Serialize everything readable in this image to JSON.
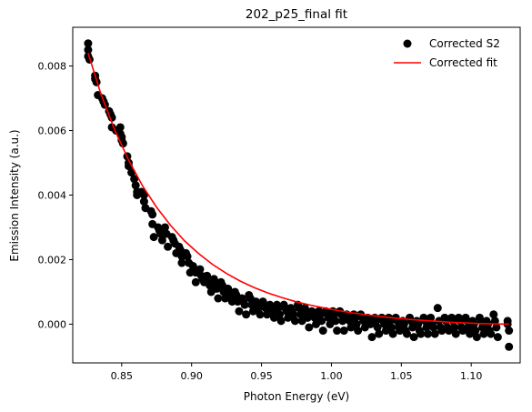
{
  "chart_data": {
    "type": "scatter",
    "title": "202_p25_final fit",
    "xlabel": "Photon Energy (eV)",
    "ylabel": "Emission Intensity (a.u.)",
    "xlim": [
      0.815,
      1.135
    ],
    "ylim": [
      -0.0012,
      0.0092
    ],
    "xticks": [
      0.85,
      0.9,
      0.95,
      1.0,
      1.05,
      1.1
    ],
    "xtick_labels": [
      "0.85",
      "0.90",
      "0.95",
      "1.00",
      "1.05",
      "1.10"
    ],
    "yticks": [
      0.0,
      0.002,
      0.004,
      0.006,
      0.008
    ],
    "ytick_labels": [
      "0.000",
      "0.002",
      "0.004",
      "0.006",
      "0.008"
    ],
    "grid": false,
    "legend_position": "top-right",
    "series": [
      {
        "name": "Corrected S2",
        "kind": "scatter",
        "color": "#000000",
        "points": [
          [
            0.826,
            0.0087
          ],
          [
            0.826,
            0.0085
          ],
          [
            0.826,
            0.0083
          ],
          [
            0.827,
            0.0082
          ],
          [
            0.831,
            0.0077
          ],
          [
            0.831,
            0.0076
          ],
          [
            0.832,
            0.0075
          ],
          [
            0.833,
            0.0071
          ],
          [
            0.836,
            0.007
          ],
          [
            0.837,
            0.0069
          ],
          [
            0.838,
            0.0068
          ],
          [
            0.841,
            0.0066
          ],
          [
            0.842,
            0.0065
          ],
          [
            0.843,
            0.0064
          ],
          [
            0.843,
            0.0061
          ],
          [
            0.846,
            0.006
          ],
          [
            0.849,
            0.0061
          ],
          [
            0.849,
            0.0059
          ],
          [
            0.85,
            0.0058
          ],
          [
            0.85,
            0.0057
          ],
          [
            0.851,
            0.0056
          ],
          [
            0.854,
            0.0052
          ],
          [
            0.855,
            0.005
          ],
          [
            0.855,
            0.0049
          ],
          [
            0.857,
            0.0047
          ],
          [
            0.859,
            0.0045
          ],
          [
            0.86,
            0.0043
          ],
          [
            0.861,
            0.0041
          ],
          [
            0.861,
            0.004
          ],
          [
            0.864,
            0.0041
          ],
          [
            0.866,
            0.004
          ],
          [
            0.866,
            0.0038
          ],
          [
            0.867,
            0.0036
          ],
          [
            0.871,
            0.0035
          ],
          [
            0.872,
            0.0034
          ],
          [
            0.872,
            0.0031
          ],
          [
            0.873,
            0.0027
          ],
          [
            0.876,
            0.003
          ],
          [
            0.877,
            0.0029
          ],
          [
            0.878,
            0.0028
          ],
          [
            0.879,
            0.0026
          ],
          [
            0.881,
            0.003
          ],
          [
            0.882,
            0.0028
          ],
          [
            0.883,
            0.0024
          ],
          [
            0.886,
            0.0027
          ],
          [
            0.887,
            0.0026
          ],
          [
            0.888,
            0.0025
          ],
          [
            0.889,
            0.0022
          ],
          [
            0.891,
            0.0024
          ],
          [
            0.892,
            0.0023
          ],
          [
            0.893,
            0.0021
          ],
          [
            0.893,
            0.0019
          ],
          [
            0.896,
            0.0022
          ],
          [
            0.897,
            0.0021
          ],
          [
            0.898,
            0.0019
          ],
          [
            0.899,
            0.0016
          ],
          [
            0.901,
            0.0018
          ],
          [
            0.902,
            0.0017
          ],
          [
            0.903,
            0.0016
          ],
          [
            0.903,
            0.0013
          ],
          [
            0.906,
            0.0017
          ],
          [
            0.907,
            0.0015
          ],
          [
            0.908,
            0.0014
          ],
          [
            0.909,
            0.0013
          ],
          [
            0.911,
            0.0015
          ],
          [
            0.912,
            0.0014
          ],
          [
            0.913,
            0.0012
          ],
          [
            0.914,
            0.001
          ],
          [
            0.916,
            0.0014
          ],
          [
            0.917,
            0.0013
          ],
          [
            0.918,
            0.0011
          ],
          [
            0.919,
            0.0008
          ],
          [
            0.921,
            0.0013
          ],
          [
            0.922,
            0.0012
          ],
          [
            0.923,
            0.001
          ],
          [
            0.924,
            0.0008
          ],
          [
            0.926,
            0.0011
          ],
          [
            0.927,
            0.001
          ],
          [
            0.928,
            0.0009
          ],
          [
            0.929,
            0.0007
          ],
          [
            0.931,
            0.001
          ],
          [
            0.932,
            0.0009
          ],
          [
            0.933,
            0.0007
          ],
          [
            0.934,
            0.0004
          ],
          [
            0.936,
            0.0008
          ],
          [
            0.937,
            0.0007
          ],
          [
            0.938,
            0.0006
          ],
          [
            0.939,
            0.0003
          ],
          [
            0.941,
            0.0009
          ],
          [
            0.942,
            0.0008
          ],
          [
            0.943,
            0.0006
          ],
          [
            0.944,
            0.0004
          ],
          [
            0.946,
            0.0007
          ],
          [
            0.947,
            0.0006
          ],
          [
            0.948,
            0.0005
          ],
          [
            0.949,
            0.0003
          ],
          [
            0.951,
            0.0007
          ],
          [
            0.952,
            0.0006
          ],
          [
            0.953,
            0.0005
          ],
          [
            0.954,
            0.0003
          ],
          [
            0.956,
            0.0006
          ],
          [
            0.957,
            0.0005
          ],
          [
            0.958,
            0.0004
          ],
          [
            0.959,
            0.0002
          ],
          [
            0.961,
            0.0006
          ],
          [
            0.962,
            0.0005
          ],
          [
            0.963,
            0.0003
          ],
          [
            0.964,
            0.0001
          ],
          [
            0.966,
            0.0006
          ],
          [
            0.967,
            0.0005
          ],
          [
            0.968,
            0.0004
          ],
          [
            0.969,
            0.0002
          ],
          [
            0.971,
            0.0005
          ],
          [
            0.972,
            0.0004
          ],
          [
            0.973,
            0.0003
          ],
          [
            0.974,
            0.0001
          ],
          [
            0.976,
            0.0006
          ],
          [
            0.977,
            0.0005
          ],
          [
            0.978,
            0.0003
          ],
          [
            0.979,
            0.0001
          ],
          [
            0.981,
            0.0005
          ],
          [
            0.982,
            0.0004
          ],
          [
            0.983,
            0.0002
          ],
          [
            0.984,
            -0.0001
          ],
          [
            0.986,
            0.0004
          ],
          [
            0.987,
            0.0003
          ],
          [
            0.988,
            0.0002
          ],
          [
            0.989,
            0.0
          ],
          [
            0.991,
            0.0004
          ],
          [
            0.992,
            0.0003
          ],
          [
            0.993,
            0.0001
          ],
          [
            0.994,
            -0.0002
          ],
          [
            0.996,
            0.0004
          ],
          [
            0.997,
            0.0003
          ],
          [
            0.998,
            0.0002
          ],
          [
            0.999,
            0.0
          ],
          [
            1.001,
            0.0004
          ],
          [
            1.002,
            0.0003
          ],
          [
            1.003,
            0.0001
          ],
          [
            1.004,
            -0.0002
          ],
          [
            1.006,
            0.0004
          ],
          [
            1.007,
            0.0003
          ],
          [
            1.008,
            0.0001
          ],
          [
            1.009,
            -0.0002
          ],
          [
            1.011,
            0.0003
          ],
          [
            1.012,
            0.0002
          ],
          [
            1.013,
            0.0001
          ],
          [
            1.014,
            -0.0001
          ],
          [
            1.016,
            0.0003
          ],
          [
            1.017,
            0.0002
          ],
          [
            1.018,
            0.0
          ],
          [
            1.019,
            -0.0002
          ],
          [
            1.021,
            0.0003
          ],
          [
            1.022,
            0.0002
          ],
          [
            1.023,
            0.0001
          ],
          [
            1.024,
            -0.0001
          ],
          [
            1.026,
            0.0002
          ],
          [
            1.027,
            0.0001
          ],
          [
            1.028,
            0.0
          ],
          [
            1.029,
            -0.0004
          ],
          [
            1.031,
            0.0002
          ],
          [
            1.032,
            0.0001
          ],
          [
            1.033,
            -0.0001
          ],
          [
            1.034,
            -0.0003
          ],
          [
            1.036,
            0.0002
          ],
          [
            1.037,
            0.0001
          ],
          [
            1.038,
            0.0
          ],
          [
            1.039,
            -0.0002
          ],
          [
            1.041,
            0.0002
          ],
          [
            1.042,
            0.0001
          ],
          [
            1.043,
            -0.0001
          ],
          [
            1.044,
            -0.0003
          ],
          [
            1.046,
            0.0002
          ],
          [
            1.047,
            0.0001
          ],
          [
            1.048,
            -0.0001
          ],
          [
            1.049,
            -0.0002
          ],
          [
            1.051,
            0.0001
          ],
          [
            1.052,
            0.0
          ],
          [
            1.053,
            -0.0002
          ],
          [
            1.054,
            -0.0003
          ],
          [
            1.056,
            0.0002
          ],
          [
            1.057,
            0.0001
          ],
          [
            1.058,
            -0.0001
          ],
          [
            1.059,
            -0.0004
          ],
          [
            1.061,
            0.0001
          ],
          [
            1.062,
            0.0
          ],
          [
            1.063,
            -0.0002
          ],
          [
            1.064,
            -0.0003
          ],
          [
            1.066,
            0.0002
          ],
          [
            1.067,
            0.0001
          ],
          [
            1.068,
            -0.0001
          ],
          [
            1.069,
            -0.0003
          ],
          [
            1.071,
            0.0002
          ],
          [
            1.072,
            0.0
          ],
          [
            1.073,
            -0.0001
          ],
          [
            1.074,
            -0.0003
          ],
          [
            1.076,
            0.0005
          ],
          [
            1.077,
            0.0001
          ],
          [
            1.078,
            -0.0001
          ],
          [
            1.079,
            -0.0002
          ],
          [
            1.081,
            0.0002
          ],
          [
            1.082,
            0.0001
          ],
          [
            1.083,
            -0.0001
          ],
          [
            1.084,
            -0.0002
          ],
          [
            1.086,
            0.0002
          ],
          [
            1.087,
            0.0001
          ],
          [
            1.088,
            -0.0001
          ],
          [
            1.089,
            -0.0003
          ],
          [
            1.091,
            0.0002
          ],
          [
            1.092,
            0.0001
          ],
          [
            1.093,
            -0.0001
          ],
          [
            1.094,
            -0.0002
          ],
          [
            1.096,
            0.0002
          ],
          [
            1.097,
            0.0001
          ],
          [
            1.098,
            -0.0001
          ],
          [
            1.099,
            -0.0003
          ],
          [
            1.101,
            0.0001
          ],
          [
            1.102,
            0.0
          ],
          [
            1.103,
            -0.0002
          ],
          [
            1.104,
            -0.0004
          ],
          [
            1.106,
            0.0002
          ],
          [
            1.107,
            0.0001
          ],
          [
            1.108,
            -0.0001
          ],
          [
            1.109,
            -0.0003
          ],
          [
            1.111,
            0.0001
          ],
          [
            1.112,
            0.0
          ],
          [
            1.113,
            -0.0002
          ],
          [
            1.114,
            -0.0003
          ],
          [
            1.116,
            0.0003
          ],
          [
            1.117,
            0.0001
          ],
          [
            1.118,
            -0.0001
          ],
          [
            1.119,
            -0.0004
          ],
          [
            1.126,
            0.0001
          ],
          [
            1.126,
            0.0
          ],
          [
            1.127,
            -0.0002
          ],
          [
            1.127,
            -0.0007
          ]
        ]
      },
      {
        "name": "Corrected fit",
        "kind": "line",
        "color": "#ff0000",
        "points": [
          [
            0.826,
            0.0084
          ],
          [
            0.835,
            0.00715
          ],
          [
            0.845,
            0.00602
          ],
          [
            0.855,
            0.00508
          ],
          [
            0.865,
            0.00428
          ],
          [
            0.875,
            0.00362
          ],
          [
            0.885,
            0.00306
          ],
          [
            0.895,
            0.00258
          ],
          [
            0.905,
            0.00219
          ],
          [
            0.915,
            0.00185
          ],
          [
            0.925,
            0.00157
          ],
          [
            0.935,
            0.00133
          ],
          [
            0.945,
            0.00113
          ],
          [
            0.955,
            0.00096
          ],
          [
            0.965,
            0.00082
          ],
          [
            0.975,
            0.00069
          ],
          [
            0.985,
            0.00059
          ],
          [
            0.995,
            0.0005
          ],
          [
            1.005,
            0.00042
          ],
          [
            1.015,
            0.00035
          ],
          [
            1.025,
            0.00029
          ],
          [
            1.035,
            0.00024
          ],
          [
            1.045,
            0.00019
          ],
          [
            1.055,
            0.00015
          ],
          [
            1.065,
            0.00012
          ],
          [
            1.075,
            9e-05
          ],
          [
            1.085,
            6e-05
          ],
          [
            1.095,
            4e-05
          ],
          [
            1.105,
            2e-05
          ],
          [
            1.115,
            1e-05
          ],
          [
            1.127,
            0.0
          ]
        ]
      }
    ]
  }
}
